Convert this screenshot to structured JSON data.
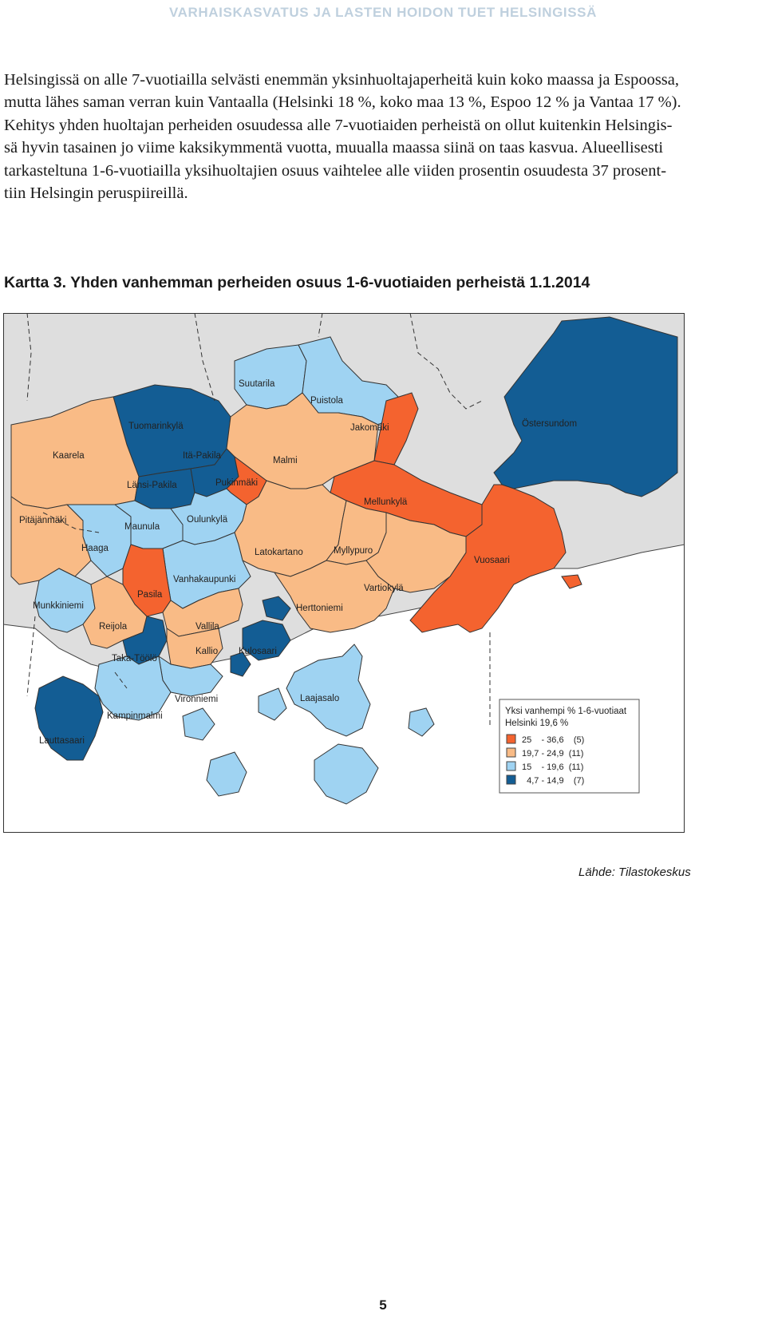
{
  "header": "VARHAISKASVATUS JA LASTEN HOIDON TUET HELSINGISSÄ",
  "paragraph": "Helsingissä on alle 7-vuotiailla selvästi enemmän yksinhuoltajaperheitä kuin koko maassa ja Espoossa,\nmutta lähes saman verran kuin Vantaalla (Helsinki 18 %, koko maa 13 %, Espoo 12 % ja Vantaa 17 %).\nKehitys yhden huoltajan perheiden osuudessa alle 7-vuotiaiden perheistä on ollut kuitenkin Helsingis-\nsä hyvin tasainen jo viime kaksikymmentä vuotta, muualla maassa siinä on taas kasvua. Alueellisesti\ntarkasteltuna 1-6-vuotiailla yksihuoltajien osuus vaihtelee alle viiden prosentin osuudesta 37 prosent-\ntiin Helsingin peruspiireillä.",
  "map_title": "Kartta 3. Yhden vanhemman perheiden osuus 1-6-vuotiaiden perheistä 1.1.2014",
  "colors": {
    "class1": "#f4632f",
    "class2": "#f9bb86",
    "class3": "#9fd3f2",
    "class4": "#135d94",
    "outside": "#dedede",
    "sea": "#ffffff"
  },
  "legend": {
    "title1": "Yksi vanhempi % 1-6-vuotiaat",
    "title2": "Helsinki 19,6 %",
    "items": [
      {
        "label": "25    - 36,6    (5)",
        "cls": "class1"
      },
      {
        "label": "19,7 - 24,9  (11)",
        "cls": "class2"
      },
      {
        "label": "15    - 19,6  (11)",
        "cls": "class3"
      },
      {
        "label": "  4,7 - 14,9    (7)",
        "cls": "class4"
      }
    ]
  },
  "districts": {
    "suutarila": "Suutarila",
    "puistola": "Puistola",
    "tuomarinkyla": "Tuomarinkylä",
    "jakomaki": "Jakomäki",
    "ostersundom": "Östersundom",
    "kaarela": "Kaarela",
    "ita_pakila": "Itä-Pakila",
    "malmi": "Malmi",
    "lansi_pakila": "Länsi-Pakila",
    "pukinmaki": "Pukinmäki",
    "mellunkyla": "Mellunkylä",
    "pitajanmaki": "Pitäjänmäki",
    "maunula": "Maunula",
    "oulunkyla": "Oulunkylä",
    "haaga": "Haaga",
    "latokartano": "Latokartano",
    "myllypuro": "Myllypuro",
    "vuosaari": "Vuosaari",
    "vanhakaupunki": "Vanhakaupunki",
    "vartiokyla": "Vartiokylä",
    "pasila": "Pasila",
    "munkkiniemi": "Munkkiniemi",
    "herttoniemi": "Herttoniemi",
    "reijola": "Reijola",
    "vallila": "Vallila",
    "kallio": "Kallio",
    "kulosaari": "Kulosaari",
    "taka_toolo": "Taka-Töölö",
    "laajasalo": "Laajasalo",
    "vironniemi": "Vironniemi",
    "kampinmalmi": "Kampinmalmi",
    "lauttasaari": "Lauttasaari"
  },
  "source": "Lähde: Tilastokeskus",
  "page_number": "5"
}
